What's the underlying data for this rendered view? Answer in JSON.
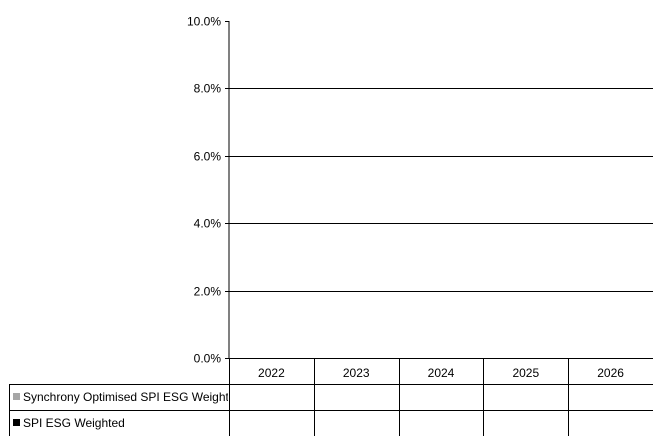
{
  "chart_data": {
    "type": "bar",
    "categories": [
      "2022",
      "2023",
      "2024",
      "2025",
      "2026"
    ],
    "series": [
      {
        "name": "Synchrony Optimised SPI ESG Weighted - I",
        "values": [
          null,
          null,
          null,
          null,
          null
        ],
        "color": "#a6a6a6"
      },
      {
        "name": "SPI ESG Weighted",
        "values": [
          null,
          null,
          null,
          null,
          null
        ],
        "color": "#000000"
      }
    ],
    "ylim": [
      0,
      10
    ],
    "yticks": [
      {
        "value": 0,
        "label": "0.0%"
      },
      {
        "value": 2,
        "label": "2.0%"
      },
      {
        "value": 4,
        "label": "4.0%"
      },
      {
        "value": 6,
        "label": "6.0%"
      },
      {
        "value": 8,
        "label": "8.0%"
      },
      {
        "value": 10,
        "label": "10.0%"
      }
    ],
    "title": "",
    "xlabel": "",
    "ylabel": "",
    "grid": true,
    "legend": "data-table-below"
  }
}
